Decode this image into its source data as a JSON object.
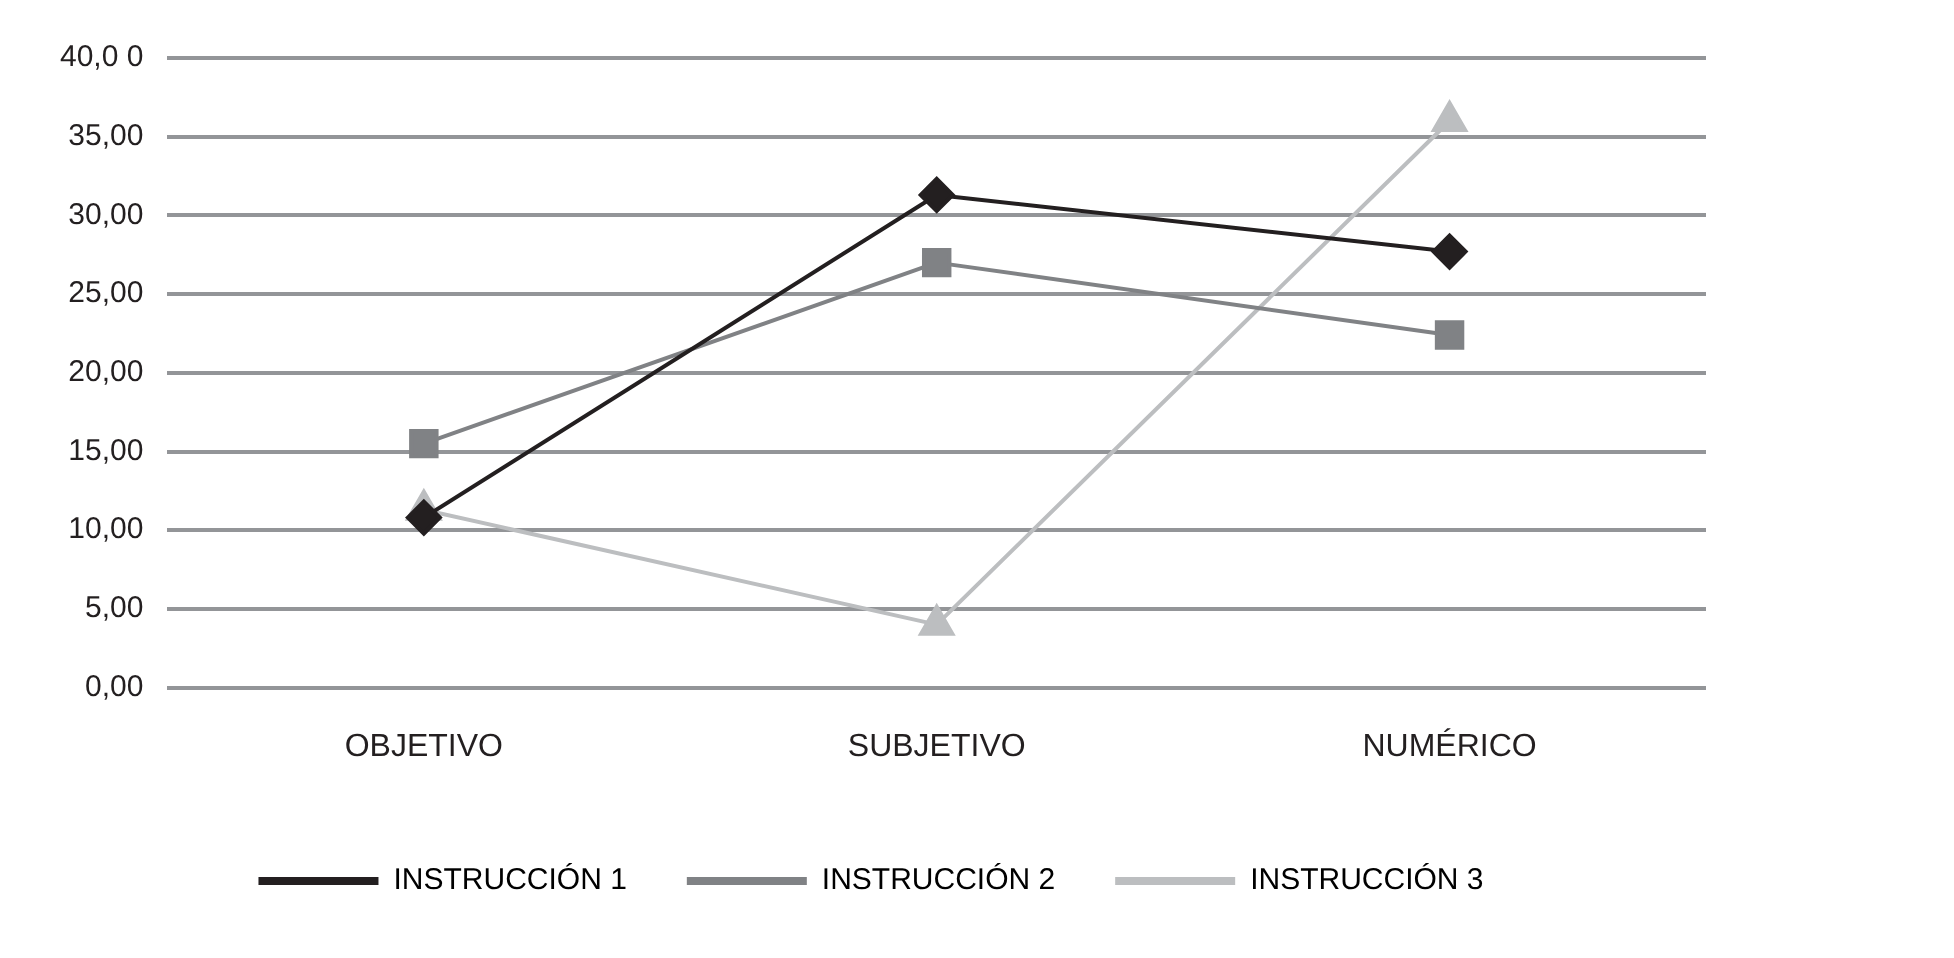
{
  "chart_data": {
    "type": "line",
    "categories": [
      "OBJETIVO",
      "SUBJETIVO",
      "NUMÉRICO"
    ],
    "series": [
      {
        "name": "INSTRUCCIÓN 1",
        "color": "#231f20",
        "marker": "diamond",
        "values": [
          10.8,
          31.3,
          27.7
        ]
      },
      {
        "name": "INSTRUCCIÓN 2",
        "color": "#808285",
        "marker": "square",
        "values": [
          15.5,
          27,
          22.4
        ]
      },
      {
        "name": "INSTRUCCIÓN 3",
        "color": "#bcbec0",
        "marker": "triangle",
        "values": [
          11.3,
          4,
          36
        ]
      }
    ],
    "ylim": [
      0,
      40
    ],
    "yticks": [
      {
        "value": 0,
        "label": "0,00"
      },
      {
        "value": 5,
        "label": "5,00"
      },
      {
        "value": 10,
        "label": "10,00"
      },
      {
        "value": 15,
        "label": "15,00"
      },
      {
        "value": 20,
        "label": "20,00"
      },
      {
        "value": 25,
        "label": "25,00"
      },
      {
        "value": 30,
        "label": "30,00"
      },
      {
        "value": 35,
        "label": "35,00"
      },
      {
        "value": 40,
        "label": "40,0 0"
      }
    ],
    "grid": "y",
    "legend": "bottom",
    "line_style": "solid"
  }
}
